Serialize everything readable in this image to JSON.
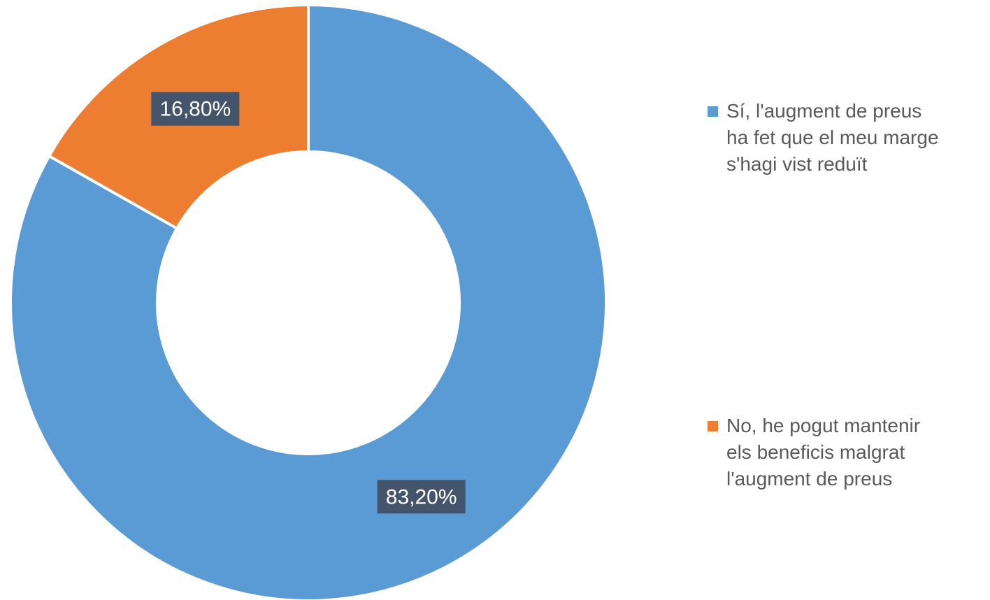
{
  "chart_data": {
    "type": "pie",
    "variant": "donut",
    "categories": [
      "Sí, l'augment de preus ha fet que el meu marge s'hagi vist reduït",
      "No, he pogut mantenir els beneficis malgrat l'augment de preus"
    ],
    "values": [
      83.2,
      16.8
    ],
    "data_labels": [
      "83,20%",
      "16,80%"
    ],
    "colors": [
      "#5b9bd5",
      "#ed7d31"
    ],
    "legend_position": "right",
    "title": "",
    "start_angle": "top",
    "direction": "clockwise"
  },
  "legend": {
    "items": [
      {
        "lines": [
          "Sí, l'augment de preus",
          "ha fet que el meu marge",
          "s'hagi vist reduït"
        ],
        "color": "#5b9bd5"
      },
      {
        "lines": [
          "No, he pogut mantenir",
          "els beneficis malgrat",
          "l'augment de preus"
        ],
        "color": "#ed7d31"
      }
    ]
  }
}
